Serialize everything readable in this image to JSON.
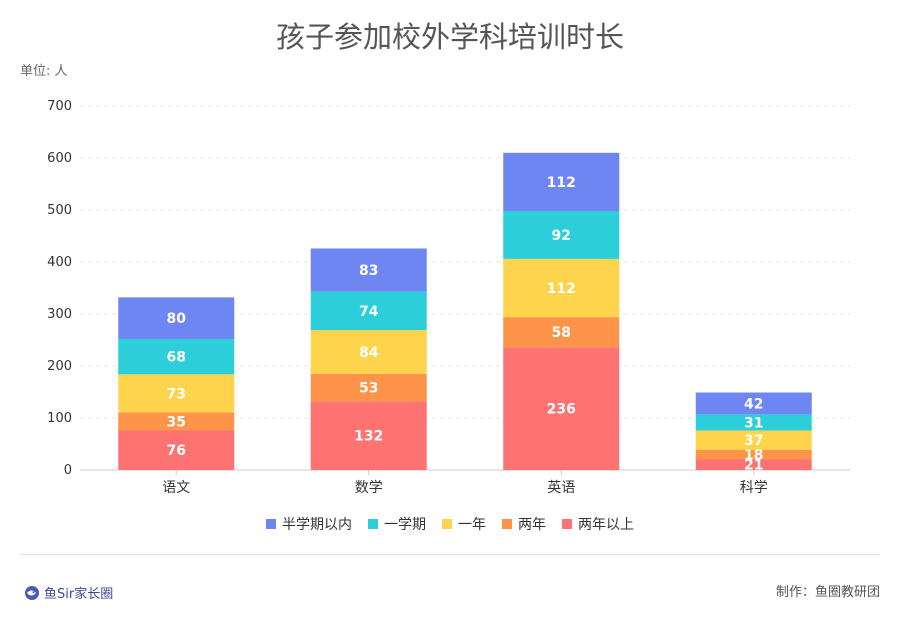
{
  "title": "孩子参加校外学科培训时长",
  "unit_label": "单位: 人",
  "brand": "鱼Sir家长圈",
  "credit": "制作：鱼圈教研团",
  "colors": {
    "半学期以内": "#6e86f2",
    "一学期": "#2ccfd9",
    "一年": "#fdd44c",
    "两年": "#fe944a",
    "两年以上": "#fe7272"
  },
  "chart_data": {
    "type": "bar",
    "stacked": true,
    "title": "孩子参加校外学科培训时长",
    "ylabel": "单位: 人",
    "ylim": [
      0,
      700
    ],
    "yticks": [
      0,
      100,
      200,
      300,
      400,
      500,
      600,
      700
    ],
    "grid": true,
    "legend_position": "bottom",
    "categories": [
      "语文",
      "数学",
      "英语",
      "科学"
    ],
    "series": [
      {
        "name": "两年以上",
        "values": [
          76,
          132,
          236,
          21
        ]
      },
      {
        "name": "两年",
        "values": [
          35,
          53,
          58,
          18
        ]
      },
      {
        "name": "一年",
        "values": [
          73,
          84,
          112,
          37
        ]
      },
      {
        "name": "一学期",
        "values": [
          68,
          74,
          92,
          31
        ]
      },
      {
        "name": "半学期以内",
        "values": [
          80,
          83,
          112,
          42
        ]
      }
    ],
    "legend_order": [
      "半学期以内",
      "一学期",
      "一年",
      "两年",
      "两年以上"
    ]
  }
}
